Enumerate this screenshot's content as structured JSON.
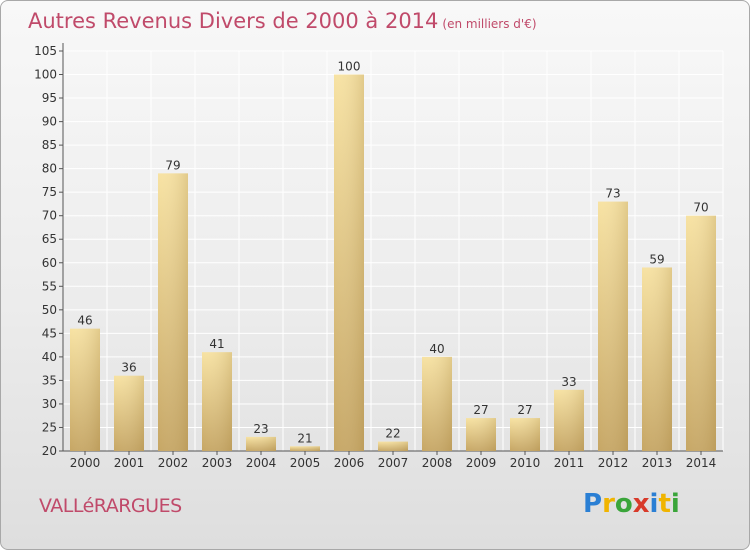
{
  "title": "Autres Revenus Divers de 2000 à 2014",
  "unit": "(en milliers d'€)",
  "commune": "VALLéRARGUES",
  "logo": {
    "letters": [
      "P",
      "r",
      "o",
      "x",
      "i",
      "t",
      "i"
    ],
    "colors": [
      "#2a7fd4",
      "#f0b400",
      "#3aa53a",
      "#d83a2a",
      "#2a7fd4",
      "#f0b400",
      "#3aa53a"
    ]
  },
  "colors": {
    "title": "#c04a6a",
    "bar_light": "#f5dc98",
    "bar_dark": "#c8a86a",
    "grid": "#ffffff"
  },
  "chart_data": {
    "type": "bar",
    "categories": [
      "2000",
      "2001",
      "2002",
      "2003",
      "2004",
      "2005",
      "2006",
      "2007",
      "2008",
      "2009",
      "2010",
      "2011",
      "2012",
      "2013",
      "2014"
    ],
    "values": [
      46,
      36,
      79,
      41,
      23,
      21,
      100,
      22,
      40,
      27,
      27,
      33,
      73,
      59,
      70
    ],
    "ylim": [
      20,
      105
    ],
    "yticks": [
      20,
      25,
      30,
      35,
      40,
      45,
      50,
      55,
      60,
      65,
      70,
      75,
      80,
      85,
      90,
      95,
      100,
      105
    ],
    "grid": true
  }
}
